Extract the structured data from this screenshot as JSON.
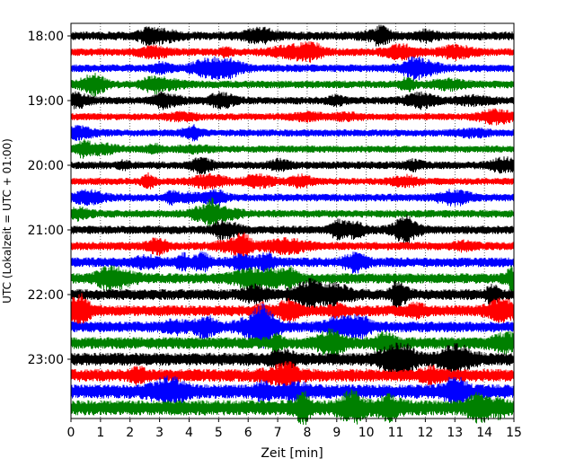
{
  "chart_data": {
    "type": "line",
    "title": "",
    "xlabel": "Zeit  [min]",
    "ylabel": "UTC (Lokalzeit = UTC + 01:00)",
    "xlim": [
      0,
      15
    ],
    "x_ticks": [
      "0",
      "1",
      "2",
      "3",
      "4",
      "5",
      "6",
      "7",
      "8",
      "9",
      "10",
      "11",
      "12",
      "13",
      "14",
      "15"
    ],
    "y_ticks": [
      "18:00",
      "19:00",
      "20:00",
      "21:00",
      "22:00",
      "23:00"
    ],
    "grid": "vertical-dotted",
    "legend": "none",
    "series_colors": [
      "#000000",
      "#ff0000",
      "#0000ff",
      "#008000"
    ],
    "traces": [
      {
        "start": "18:00",
        "color": "#000000",
        "amplitude": 0.25
      },
      {
        "start": "18:15",
        "color": "#ff0000",
        "amplitude": 0.22
      },
      {
        "start": "18:30",
        "color": "#0000ff",
        "amplitude": 0.22
      },
      {
        "start": "18:45",
        "color": "#008000",
        "amplitude": 0.22
      },
      {
        "start": "19:00",
        "color": "#000000",
        "amplitude": 0.22
      },
      {
        "start": "19:15",
        "color": "#ff0000",
        "amplitude": 0.2
      },
      {
        "start": "19:30",
        "color": "#0000ff",
        "amplitude": 0.2
      },
      {
        "start": "19:45",
        "color": "#008000",
        "amplitude": 0.2
      },
      {
        "start": "20:00",
        "color": "#000000",
        "amplitude": 0.22
      },
      {
        "start": "20:15",
        "color": "#ff0000",
        "amplitude": 0.2
      },
      {
        "start": "20:30",
        "color": "#0000ff",
        "amplitude": 0.22
      },
      {
        "start": "20:45",
        "color": "#008000",
        "amplitude": 0.22
      },
      {
        "start": "21:00",
        "color": "#000000",
        "amplitude": 0.24
      },
      {
        "start": "21:15",
        "color": "#ff0000",
        "amplitude": 0.24
      },
      {
        "start": "21:30",
        "color": "#0000ff",
        "amplitude": 0.28
      },
      {
        "start": "21:45",
        "color": "#008000",
        "amplitude": 0.3
      },
      {
        "start": "22:00",
        "color": "#000000",
        "amplitude": 0.32
      },
      {
        "start": "22:15",
        "color": "#ff0000",
        "amplitude": 0.32
      },
      {
        "start": "22:30",
        "color": "#0000ff",
        "amplitude": 0.32
      },
      {
        "start": "22:45",
        "color": "#008000",
        "amplitude": 0.35
      },
      {
        "start": "23:00",
        "color": "#000000",
        "amplitude": 0.38
      },
      {
        "start": "23:15",
        "color": "#ff0000",
        "amplitude": 0.38
      },
      {
        "start": "23:30",
        "color": "#0000ff",
        "amplitude": 0.42
      },
      {
        "start": "23:45",
        "color": "#008000",
        "amplitude": 0.45
      }
    ]
  }
}
